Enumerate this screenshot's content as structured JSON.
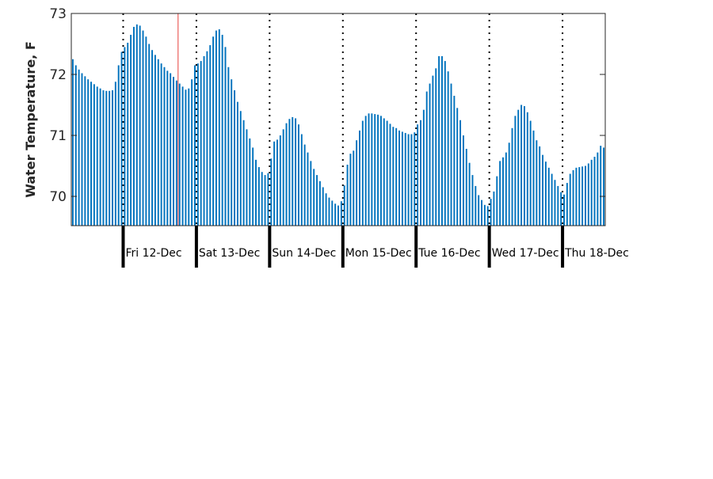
{
  "chart_data": {
    "type": "bar",
    "ylabel": "Water Temperature, F",
    "xlabel": "",
    "ylim": [
      69.52,
      73
    ],
    "x_start_hour_of_nov11": 0,
    "yticks": [
      70,
      71,
      72,
      73
    ],
    "grid": false,
    "bar_color": "#0072bd",
    "axes_color": "#262626",
    "day_labels": [
      "Fri 12-Dec",
      "Sat 13-Dec",
      "Sun 14-Dec",
      "Mon 15-Dec",
      "Tue 16-Dec",
      "Wed 17-Dec",
      "Thu 18-Dec"
    ],
    "day_boundary_hours": [
      17,
      41,
      65,
      89,
      113,
      137,
      161
    ],
    "now_marker_hour": 35,
    "now_marker_color": "#e8413c",
    "series": [
      {
        "values": [
          72.25,
          72.15,
          72.08,
          72.02,
          71.97,
          71.92,
          71.88,
          71.84,
          71.8,
          71.77,
          71.74,
          71.73,
          71.73,
          71.74,
          71.88,
          72.15,
          72.37,
          72.45,
          72.52,
          72.65,
          72.78,
          72.82,
          72.8,
          72.72,
          72.62,
          72.5,
          72.4,
          72.32,
          72.25,
          72.18,
          72.12,
          72.06,
          72.02,
          71.96,
          71.9,
          71.85,
          71.8,
          71.75,
          71.77,
          71.92,
          72.15,
          72.18,
          72.22,
          72.3,
          72.38,
          72.48,
          72.62,
          72.72,
          72.74,
          72.65,
          72.45,
          72.12,
          71.92,
          71.74,
          71.55,
          71.4,
          71.25,
          71.1,
          70.95,
          70.8,
          70.6,
          70.48,
          70.4,
          70.35,
          70.38,
          70.62,
          70.9,
          70.93,
          71.0,
          71.1,
          71.2,
          71.27,
          71.3,
          71.28,
          71.18,
          71.02,
          70.85,
          70.72,
          70.58,
          70.45,
          70.35,
          70.25,
          70.15,
          70.05,
          69.98,
          69.93,
          69.88,
          69.85,
          69.92,
          70.18,
          70.52,
          70.7,
          70.75,
          70.92,
          71.08,
          71.24,
          71.32,
          71.36,
          71.36,
          71.35,
          71.34,
          71.32,
          71.28,
          71.24,
          71.19,
          71.14,
          71.12,
          71.08,
          71.06,
          71.04,
          71.02,
          71.02,
          71.05,
          71.18,
          71.25,
          71.42,
          71.72,
          71.85,
          71.98,
          72.1,
          72.3,
          72.3,
          72.22,
          72.05,
          71.85,
          71.65,
          71.45,
          71.25,
          71.0,
          70.78,
          70.55,
          70.35,
          70.17,
          70.02,
          69.94,
          69.86,
          69.84,
          69.96,
          70.08,
          70.33,
          70.58,
          70.64,
          70.72,
          70.88,
          71.12,
          71.32,
          71.42,
          71.5,
          71.48,
          71.38,
          71.24,
          71.08,
          70.92,
          70.82,
          70.68,
          70.57,
          70.47,
          70.37,
          70.27,
          70.17,
          70.07,
          70.03,
          70.22,
          70.37,
          70.43,
          70.47,
          70.48,
          70.49,
          70.5,
          70.54,
          70.6,
          70.65,
          70.72,
          70.83,
          70.8
        ]
      }
    ]
  }
}
